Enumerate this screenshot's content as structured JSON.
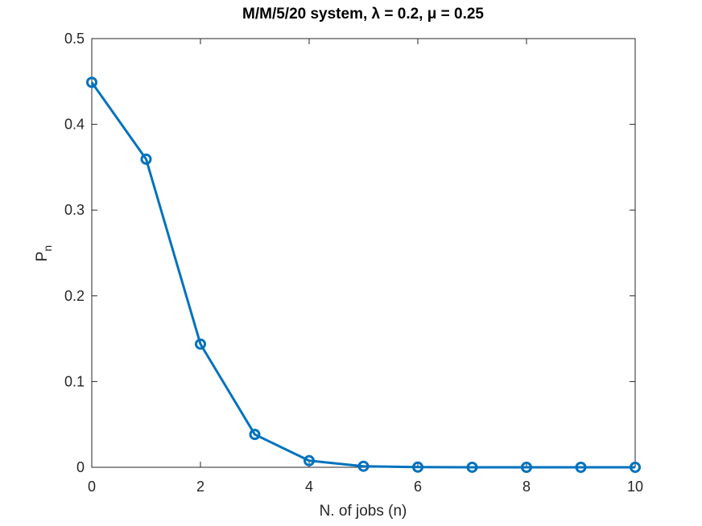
{
  "chart_data": {
    "type": "line",
    "title": "M/M/5/20 system, λ = 0.2, μ = 0.25",
    "xlabel": "N. of jobs (n)",
    "ylabel": {
      "main": "P",
      "sub": "n"
    },
    "xlim": [
      0,
      10
    ],
    "ylim": [
      0,
      0.5
    ],
    "xticks": [
      0,
      2,
      4,
      6,
      8,
      10
    ],
    "yticks": [
      0,
      0.1,
      0.2,
      0.3,
      0.4,
      0.5
    ],
    "xtick_labels": [
      "0",
      "2",
      "4",
      "6",
      "8",
      "10"
    ],
    "ytick_labels": [
      "0",
      "0.1",
      "0.2",
      "0.3",
      "0.4",
      "0.5"
    ],
    "grid": false,
    "series": [
      {
        "color": "#0072BD",
        "marker": "circle",
        "x": [
          0,
          1,
          2,
          3,
          4,
          5,
          6,
          7,
          8,
          9,
          10
        ],
        "y": [
          0.449,
          0.3594,
          0.1437,
          0.0383,
          0.0077,
          0.0012,
          0.0002,
          2e-05,
          0.0,
          0.0,
          0.0
        ]
      }
    ]
  }
}
